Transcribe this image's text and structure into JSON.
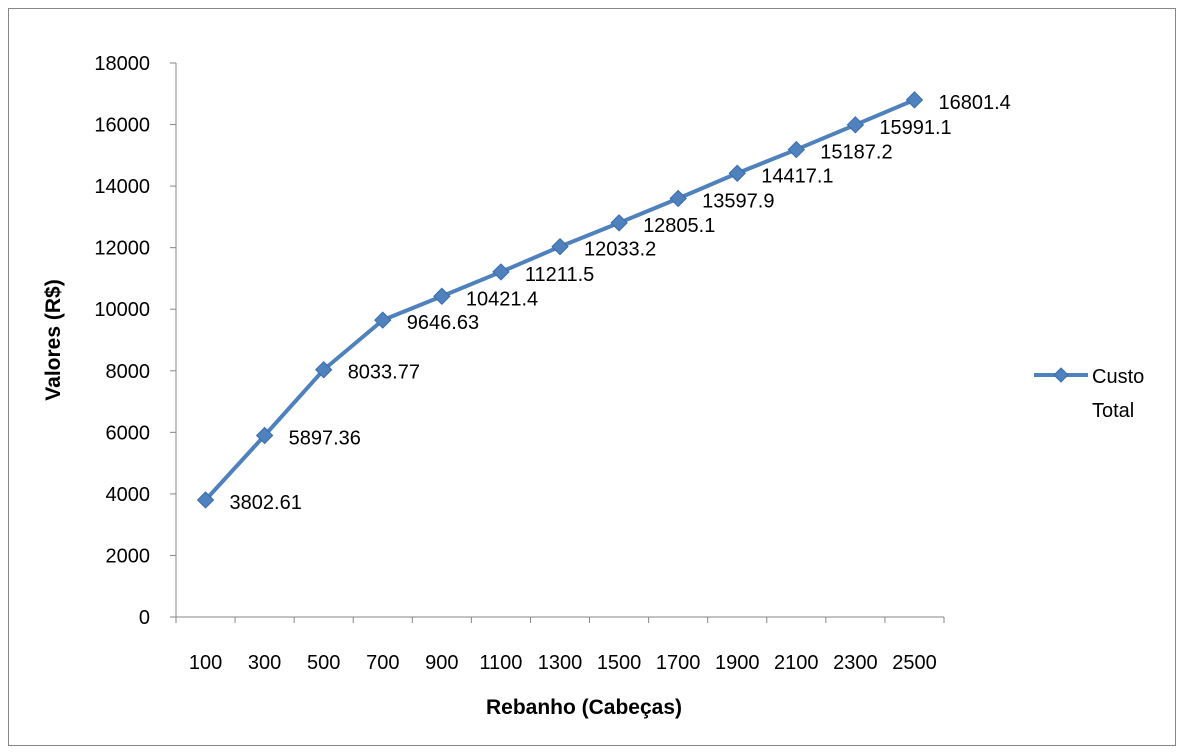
{
  "chart_data": {
    "type": "line",
    "title": "",
    "xlabel": "Rebanho (Cabeças)",
    "ylabel": "Valores (R$)",
    "categories": [
      "100",
      "300",
      "500",
      "700",
      "900",
      "1100",
      "1300",
      "1500",
      "1700",
      "1900",
      "2100",
      "2300",
      "2500"
    ],
    "series": [
      {
        "name": "Custo Total",
        "values": [
          3802.61,
          5897.36,
          8033.77,
          9646.63,
          10421.4,
          11211.5,
          12033.2,
          12805.1,
          13597.9,
          14417.1,
          15187.2,
          15991.1,
          16801.4
        ],
        "labels": [
          "3802.61",
          "5897.36",
          "8033.77",
          "9646.63",
          "10421.4",
          "11211.5",
          "12033.2",
          "12805.1",
          "13597.9",
          "14417.1",
          "15187.2",
          "15991.1",
          "16801.4"
        ],
        "color": "#4F81BD"
      }
    ],
    "ylim": [
      0,
      18000
    ],
    "yticks": [
      0,
      2000,
      4000,
      6000,
      8000,
      10000,
      12000,
      14000,
      16000,
      18000
    ],
    "grid": false,
    "legend_position": "right",
    "legend_lines": [
      "Custo",
      "Total"
    ],
    "marker": "diamond"
  }
}
